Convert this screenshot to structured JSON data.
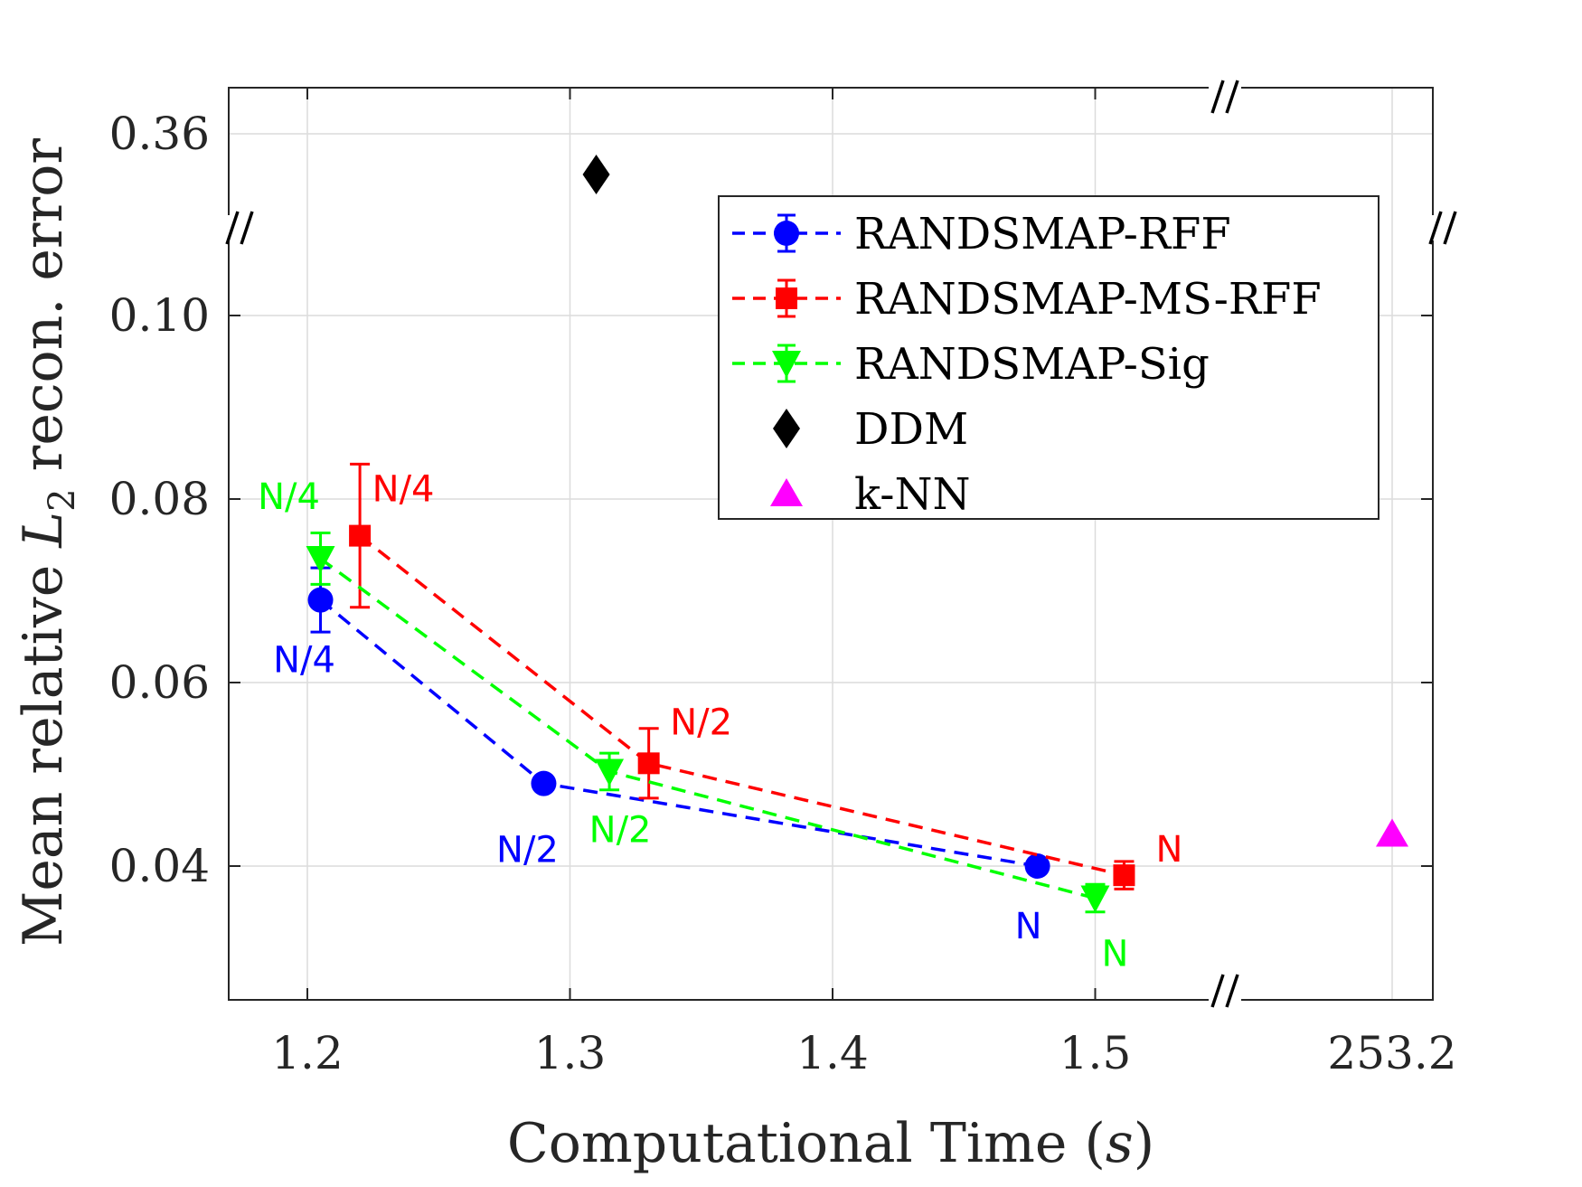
{
  "chart_data": {
    "type": "line",
    "xlabel_prefix": "Computational Time (",
    "xlabel_var": "s",
    "xlabel_suffix": ")",
    "ylabel_prefix": "Mean relative ",
    "ylabel_var": "L",
    "ylabel_sub": "2",
    "ylabel_suffix": " recon. error",
    "xlim": [
      1.17,
      1.56
    ],
    "x_ticks": [
      {
        "value": 1.2,
        "label": "1.2"
      },
      {
        "value": 1.3,
        "label": "1.3"
      },
      {
        "value": 1.4,
        "label": "1.4"
      },
      {
        "value": 1.5,
        "label": "1.5"
      }
    ],
    "x_break_tick": {
      "label": "253.2"
    },
    "ylim": [
      0.025,
      0.1
    ],
    "y_ticks": [
      {
        "value": 0.04,
        "label": "0.04"
      },
      {
        "value": 0.06,
        "label": "0.06"
      },
      {
        "value": 0.08,
        "label": "0.08"
      },
      {
        "value": 0.1,
        "label": "0.10"
      }
    ],
    "y_break_tick": {
      "label": "0.36"
    },
    "axis_break_marks": [
      "//",
      "//",
      "//",
      "//"
    ],
    "grid": true,
    "legend_position": "top-right",
    "series": [
      {
        "name": "RANDSMAP-RFF",
        "color": "#0000FF",
        "marker": "circle",
        "x": [
          1.205,
          1.29,
          1.478
        ],
        "y": [
          0.069,
          0.049,
          0.04
        ],
        "err": [
          0.0035,
          0.0005,
          0.0004
        ],
        "labels": [
          "N/4",
          "N/2",
          "N"
        ]
      },
      {
        "name": "RANDSMAP-MS-RFF",
        "color": "#FF0000",
        "marker": "square",
        "x": [
          1.22,
          1.33,
          1.511
        ],
        "y": [
          0.076,
          0.0512,
          0.039
        ],
        "err": [
          0.0078,
          0.0038,
          0.0015
        ],
        "labels": [
          "N/4",
          "N/2",
          "N"
        ]
      },
      {
        "name": "RANDSMAP-Sig",
        "color": "#00FF00",
        "marker": "triangle-down",
        "x": [
          1.205,
          1.315,
          1.5
        ],
        "y": [
          0.0735,
          0.0503,
          0.0365
        ],
        "err": [
          0.0028,
          0.002,
          0.0015
        ],
        "labels": [
          "N/4",
          "N/2",
          "N"
        ]
      }
    ],
    "points": [
      {
        "name": "DDM",
        "color": "#000000",
        "marker": "diamond",
        "x": 1.31,
        "y_label": "0.36 (broken axis)",
        "y_display": "above 0.10"
      },
      {
        "name": "k-NN",
        "color": "#FF00FF",
        "marker": "triangle-up",
        "x": 253.2,
        "y": 0.0435
      }
    ]
  }
}
